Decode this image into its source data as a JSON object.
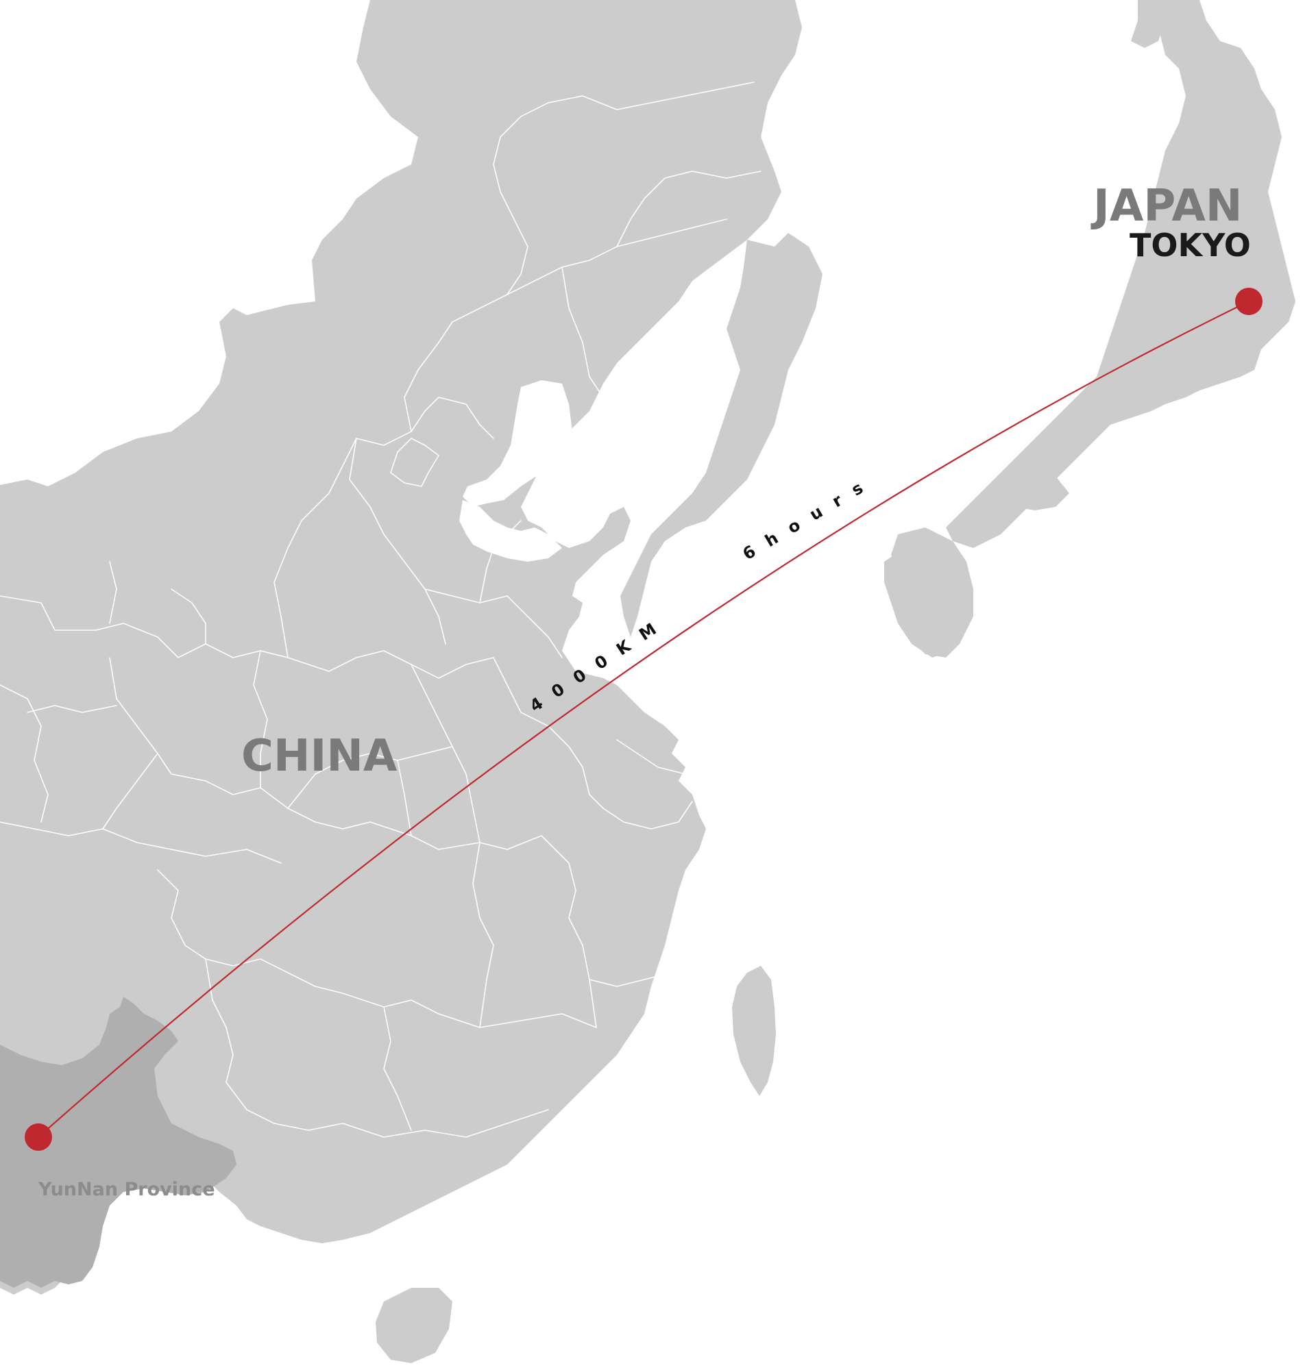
{
  "labels": {
    "china": "CHINA",
    "japan": "JAPAN",
    "tokyo": "TOKYO",
    "yunnan": "YunNan Province",
    "distance": "4000KM",
    "duration": "6hours"
  },
  "colors": {
    "background": "#ffffff",
    "land": "#cccccc",
    "highlight_province": "#afafaf",
    "borders": "#ffffff",
    "route_line": "#c0282f",
    "route_markers": "#c0282f",
    "country_label": "#7a7a7a",
    "city_label": "#1a1a1a",
    "province_label": "#8c8c8c"
  },
  "markers": [
    {
      "name": "Tokyo",
      "icon": "red-dot"
    },
    {
      "name": "YunNan Province",
      "icon": "red-dot"
    }
  ]
}
